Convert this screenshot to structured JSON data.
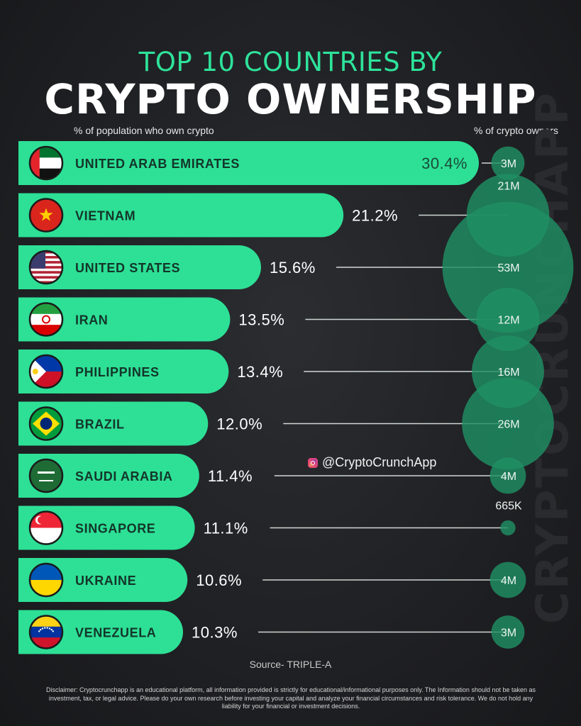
{
  "title_line1": "TOP 10 COUNTRIES BY",
  "title_line2": "CRYPTO OWNERSHIP",
  "subtitle_left": "% of population who own crypto",
  "subtitle_right": "% of crypto owners",
  "watermark": "CRYPTOCRUNCHAPP",
  "handle": "@CryptoCrunchApp",
  "source": "Source- TRIPLE-A",
  "disclaimer": "Disclaimer: Cryptocrunchapp is an educational platform, all information provided is strictly for educational/informational purposes only. The Information should not be taken as investment, tax, or legal advice. Please do your own research before investing your capital and analyze your financial circumstances and risk tolerance. We do not hold any liability for your financial or investment decisions.",
  "colors": {
    "bar": "#2de096",
    "accent": "#2ee29a",
    "bubble": "#1f8f63",
    "background": "#1d1e21"
  },
  "chart_data": {
    "type": "bar",
    "categories": [
      "UNITED ARAB EMIRATES",
      "VIETNAM",
      "UNITED STATES",
      "IRAN",
      "PHILIPPINES",
      "BRAZIL",
      "SAUDI ARABIA",
      "SINGAPORE",
      "UKRAINE",
      "VENEZUELA"
    ],
    "values": [
      30.4,
      21.2,
      15.6,
      13.5,
      13.4,
      12.0,
      11.4,
      11.1,
      10.6,
      10.3
    ],
    "value_labels": [
      "30.4%",
      "21.2%",
      "15.6%",
      "13.5%",
      "13.4%",
      "12.0%",
      "11.4%",
      "11.1%",
      "10.6%",
      "10.3%"
    ],
    "owners": [
      3000000,
      21000000,
      53000000,
      12000000,
      16000000,
      26000000,
      4000000,
      665000,
      4000000,
      3000000
    ],
    "owner_labels": [
      "3M",
      "21M",
      "53M",
      "12M",
      "16M",
      "26M",
      "4M",
      "665K",
      "4M",
      "3M"
    ],
    "flags": [
      "uae-flag-icon",
      "vietnam-flag-icon",
      "usa-flag-icon",
      "iran-flag-icon",
      "philippines-flag-icon",
      "brazil-flag-icon",
      "saudi-arabia-flag-icon",
      "singapore-flag-icon",
      "ukraine-flag-icon",
      "venezuela-flag-icon"
    ],
    "orientation": "horizontal",
    "grid": false,
    "legend": "none"
  }
}
